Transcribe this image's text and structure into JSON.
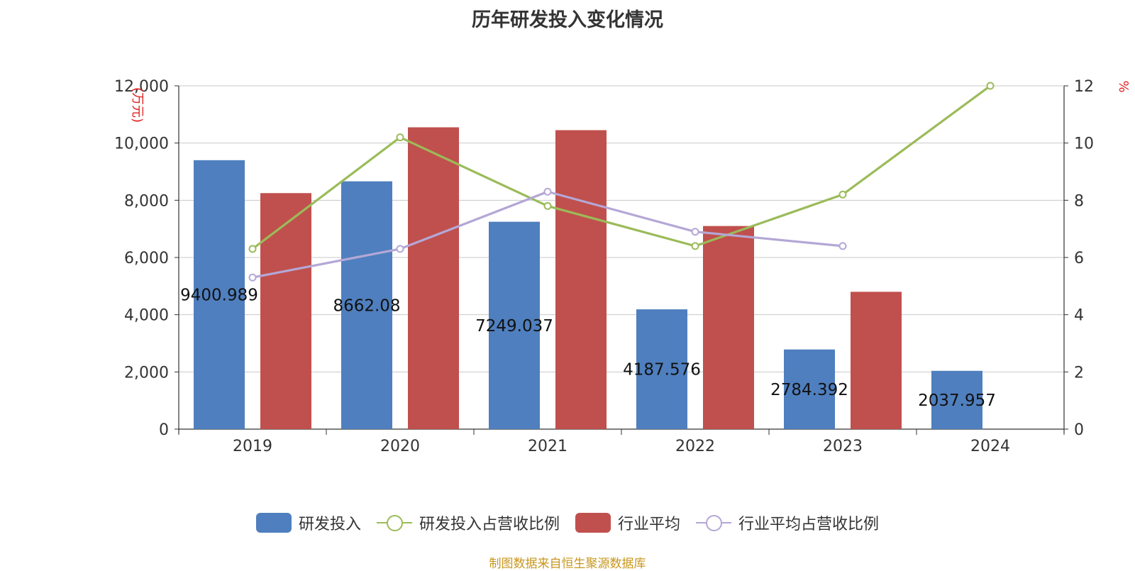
{
  "chart_data": {
    "type": "bar",
    "title": "历年研发投入变化情况",
    "categories": [
      "2019",
      "2020",
      "2021",
      "2022",
      "2023",
      "2024"
    ],
    "y_left": {
      "label": "(万元)",
      "ticks": [
        "0",
        "2,000",
        "4,000",
        "6,000",
        "8,000",
        "10,000",
        "12,000"
      ],
      "ylim": [
        0,
        12000
      ]
    },
    "y_right": {
      "label": "%",
      "ticks": [
        "0",
        "2",
        "4",
        "6",
        "8",
        "10",
        "12"
      ],
      "ylim": [
        0,
        12
      ]
    },
    "series": [
      {
        "name": "研发投入",
        "type": "bar",
        "axis": "left",
        "color": "#4f7fbe",
        "values": [
          9400.989,
          8662.08,
          7249.037,
          4187.576,
          2784.392,
          2037.957
        ],
        "data_labels": [
          "9400.989",
          "8662.08",
          "7249.037",
          "4187.576",
          "2784.392",
          "2037.957"
        ]
      },
      {
        "name": "研发投入占营收比例",
        "type": "line",
        "axis": "right",
        "color": "#9bbb59",
        "values": [
          6.3,
          10.2,
          7.8,
          6.4,
          8.2,
          12.0
        ]
      },
      {
        "name": "行业平均",
        "type": "bar",
        "axis": "left",
        "color": "#c0504d",
        "values": [
          8250,
          10550,
          10450,
          7100,
          4800,
          null
        ]
      },
      {
        "name": "行业平均占营收比例",
        "type": "line",
        "axis": "right",
        "color": "#b4a7d6",
        "values": [
          5.3,
          6.3,
          8.3,
          6.9,
          6.4,
          null
        ]
      }
    ],
    "grid": true,
    "legend_position": "bottom"
  },
  "source_note": "制图数据来自恒生聚源数据库"
}
